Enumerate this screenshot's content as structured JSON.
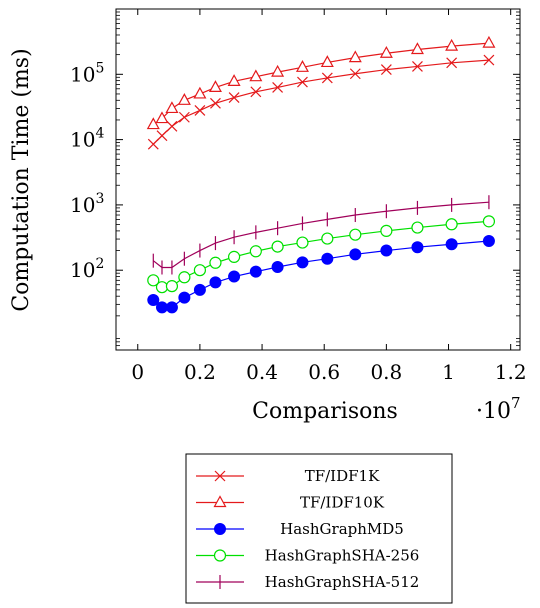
{
  "chart_data": {
    "type": "line",
    "xlabel": "Comparisons",
    "ylabel": "Computation Time (ms)",
    "x_multiplier_label": "·10",
    "x_multiplier_exponent": "7",
    "yscale": "log",
    "xlim": [
      -0.07,
      1.23
    ],
    "ylim": [
      6,
      1000000
    ],
    "x_ticks": [
      0,
      0.2,
      0.4,
      0.6,
      0.8,
      1,
      1.2
    ],
    "x_tick_labels": [
      "0",
      "0.2",
      "0.4",
      "0.6",
      "0.8",
      "1",
      "1.2"
    ],
    "y_ticks": [
      100,
      1000,
      10000,
      100000
    ],
    "y_tick_labels": [
      "10",
      "10",
      "10",
      "10"
    ],
    "y_tick_exponents": [
      "2",
      "3",
      "4",
      "5"
    ],
    "legend_position": "below",
    "x": [
      0.05,
      0.078,
      0.11,
      0.15,
      0.2,
      0.25,
      0.31,
      0.38,
      0.45,
      0.53,
      0.61,
      0.7,
      0.8,
      0.9,
      1.01,
      1.13
    ],
    "series": [
      {
        "name": "TF/IDF1K",
        "marker": "x",
        "color": "#e41a1c",
        "values": [
          8500,
          11500,
          16000,
          22000,
          28000,
          36000,
          44000,
          54000,
          63000,
          76000,
          88000,
          102000,
          118000,
          132000,
          150000,
          165000
        ]
      },
      {
        "name": "TF/IDF10K",
        "marker": "triangle",
        "color": "#e41a1c",
        "values": [
          17000,
          21000,
          30000,
          40000,
          50000,
          63000,
          78000,
          92000,
          108000,
          128000,
          152000,
          180000,
          210000,
          240000,
          270000,
          300000
        ]
      },
      {
        "name": "HashGraphMD5",
        "marker": "filled-circle",
        "color": "#0000ff",
        "values": [
          35,
          27,
          27,
          38,
          50,
          65,
          80,
          95,
          112,
          132,
          150,
          175,
          200,
          225,
          250,
          280
        ]
      },
      {
        "name": "HashGraphSHA-256",
        "marker": "open-circle",
        "color": "#00e000",
        "values": [
          70,
          55,
          57,
          78,
          100,
          130,
          160,
          195,
          230,
          265,
          305,
          350,
          400,
          450,
          505,
          560
        ]
      },
      {
        "name": "HashGraphSHA-512",
        "marker": "plus",
        "color": "#a0005a",
        "values": [
          140,
          110,
          110,
          150,
          200,
          260,
          320,
          380,
          440,
          520,
          600,
          700,
          800,
          900,
          1000,
          1100
        ]
      }
    ]
  }
}
